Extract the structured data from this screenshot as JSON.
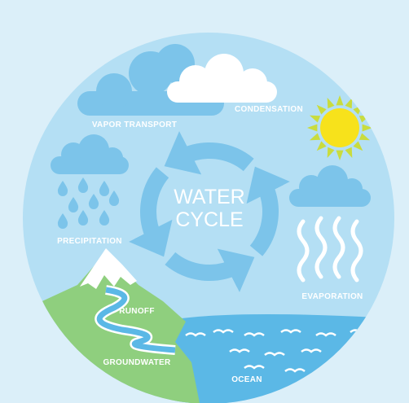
{
  "center": {
    "title_lines": [
      "WATER",
      "CYCLE"
    ]
  },
  "labels": {
    "vapor_transport": "VAPOR TRANSPORT",
    "condensation": "CONDENSATION",
    "precipitation": "PRECIPITATION",
    "evaporation": "EVAPORATION",
    "runoff": "RUNOFF",
    "groundwater": "GROUNDWATER",
    "ocean": "OCEAN"
  }
}
